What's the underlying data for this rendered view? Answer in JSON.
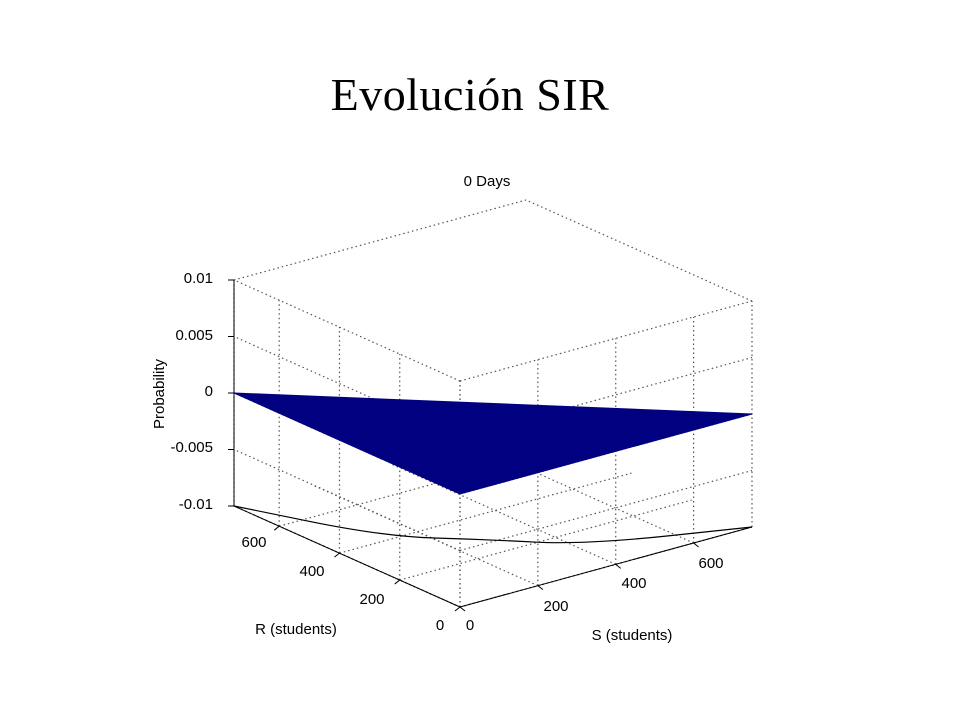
{
  "slide": {
    "title": "Evolución SIR"
  },
  "chart_data": {
    "type": "surface3d",
    "title": "0 Days",
    "xlabel": "S (students)",
    "ylabel": "R (students)",
    "zlabel": "Probability",
    "x_ticks": [
      "0",
      "200",
      "400",
      "600"
    ],
    "y_ticks": [
      "0",
      "200",
      "400",
      "600"
    ],
    "z_ticks": [
      "-0.01",
      "-0.005",
      "0",
      "0.005",
      "0.01"
    ],
    "xlim": [
      0,
      750
    ],
    "ylim": [
      0,
      750
    ],
    "zlim": [
      -0.01,
      0.01
    ],
    "grid": true,
    "surface": {
      "color": "#000080",
      "vertices": [
        {
          "S": 0,
          "R": 750,
          "P": 0
        },
        {
          "S": 750,
          "R": 0,
          "P": 0
        },
        {
          "S": 0,
          "R": 0,
          "P": 0
        }
      ]
    },
    "floor_curve": {
      "color": "#000000",
      "points": [
        {
          "S": 0,
          "R": 750
        },
        {
          "S": 130,
          "R": 420
        },
        {
          "S": 280,
          "R": 280
        },
        {
          "S": 420,
          "R": 130
        },
        {
          "S": 750,
          "R": 0
        }
      ]
    }
  }
}
